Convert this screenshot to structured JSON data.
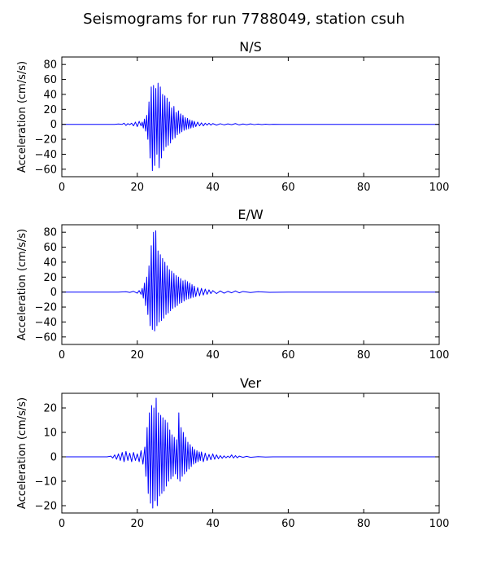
{
  "figure_title": "Seismograms for run 7788049, station csuh",
  "chart_data": [
    {
      "type": "line",
      "title": "N/S",
      "xlabel": "",
      "ylabel": "Acceleration (cm/s/s)",
      "xlim": [
        0,
        100
      ],
      "ylim": [
        -70,
        90
      ],
      "xticks": [
        0,
        20,
        40,
        60,
        80,
        100
      ],
      "yticks": [
        -60,
        -40,
        -20,
        0,
        20,
        40,
        60,
        80
      ],
      "grid": false,
      "color": "#0000ff",
      "series": [
        {
          "x": [
            0,
            12,
            14,
            15,
            16,
            16.5,
            17,
            17.5,
            18,
            18.5,
            19,
            19.5,
            20,
            20.5,
            21,
            21.3,
            21.6,
            21.9,
            22.2,
            22.5,
            22.8,
            23.1,
            23.4,
            23.7,
            24,
            24.3,
            24.6,
            24.9,
            25.2,
            25.5,
            25.8,
            26.1,
            26.4,
            26.7,
            27,
            27.3,
            27.6,
            27.9,
            28.2,
            28.5,
            28.8,
            29.1,
            29.4,
            29.7,
            30,
            30.3,
            30.6,
            30.9,
            31.2,
            31.5,
            31.8,
            32.1,
            32.4,
            32.7,
            33,
            33.3,
            33.6,
            33.9,
            34.2,
            34.5,
            34.8,
            35.1,
            35.5,
            36,
            36.5,
            37,
            37.5,
            38,
            38.5,
            39,
            39.5,
            40,
            41,
            42,
            43,
            44,
            45,
            46,
            47,
            48,
            49,
            50,
            51,
            52,
            53,
            54,
            55,
            56,
            58,
            60,
            100
          ],
          "y": [
            0,
            0,
            0,
            0.5,
            0,
            1.5,
            -1.5,
            1,
            -0.5,
            1.5,
            -2,
            3,
            -3,
            4,
            -2,
            3,
            -5,
            7,
            -9,
            12,
            -20,
            30,
            -45,
            50,
            -62,
            52,
            -55,
            48,
            -40,
            55,
            -58,
            50,
            -45,
            40,
            -35,
            38,
            -30,
            35,
            -28,
            30,
            -25,
            22,
            -20,
            24,
            -18,
            16,
            -14,
            18,
            -12,
            14,
            -10,
            12,
            -8,
            9,
            -7,
            8,
            -6,
            6,
            -5,
            5,
            -4,
            4,
            -3,
            3,
            -2,
            2,
            -2,
            1.5,
            -1,
            1.5,
            -1,
            1,
            -1,
            0.8,
            -0.7,
            0.6,
            -0.5,
            1,
            -0.8,
            0.5,
            -0.5,
            0.6,
            -0.4,
            0.3,
            -0.3,
            0.2,
            -0.2,
            0.1,
            0,
            0,
            0
          ]
        }
      ]
    },
    {
      "type": "line",
      "title": "E/W",
      "xlabel": "",
      "ylabel": "Acceleration (cm/s/s)",
      "xlim": [
        0,
        100
      ],
      "ylim": [
        -70,
        90
      ],
      "xticks": [
        0,
        20,
        40,
        60,
        80,
        100
      ],
      "yticks": [
        -60,
        -40,
        -20,
        0,
        20,
        40,
        60,
        80
      ],
      "grid": false,
      "color": "#0000ff",
      "series": [
        {
          "x": [
            0,
            15,
            17,
            18,
            19,
            20,
            20.5,
            21,
            21.3,
            21.6,
            21.9,
            22.2,
            22.5,
            22.8,
            23.1,
            23.4,
            23.7,
            24,
            24.3,
            24.6,
            24.9,
            25.2,
            25.5,
            25.8,
            26.1,
            26.4,
            26.7,
            27,
            27.3,
            27.6,
            27.9,
            28.2,
            28.5,
            28.8,
            29.1,
            29.4,
            29.7,
            30,
            30.3,
            30.6,
            30.9,
            31.2,
            31.5,
            31.8,
            32.1,
            32.4,
            32.7,
            33,
            33.3,
            33.6,
            33.9,
            34.2,
            34.5,
            34.8,
            35.1,
            35.5,
            36,
            36.5,
            37,
            37.5,
            38,
            38.5,
            39,
            39.5,
            40,
            41,
            42,
            43,
            44,
            45,
            46,
            47,
            48,
            50,
            52,
            55,
            60,
            100
          ],
          "y": [
            0,
            0,
            0.5,
            -0.5,
            1,
            -1.5,
            2,
            -3,
            5,
            -8,
            12,
            -18,
            20,
            -30,
            35,
            -45,
            62,
            -50,
            80,
            -52,
            82,
            -45,
            55,
            -40,
            50,
            -38,
            45,
            -35,
            40,
            -30,
            35,
            -28,
            30,
            -25,
            28,
            -22,
            25,
            -20,
            22,
            -18,
            20,
            -15,
            18,
            -14,
            15,
            -12,
            16,
            -10,
            14,
            -9,
            12,
            -8,
            10,
            -7,
            8,
            -6,
            6,
            -5,
            5,
            -4,
            4,
            -3,
            3,
            -2,
            2,
            -2,
            1.5,
            -1.5,
            1,
            -1,
            1.5,
            -1,
            0.8,
            -0.6,
            0.5,
            -0.3,
            0,
            0
          ]
        }
      ]
    },
    {
      "type": "line",
      "title": "Ver",
      "xlabel": "",
      "ylabel": "Acceleration (cm/s/s)",
      "xlim": [
        0,
        100
      ],
      "ylim": [
        -23,
        26
      ],
      "xticks": [
        0,
        20,
        40,
        60,
        80,
        100
      ],
      "yticks": [
        -20,
        -10,
        0,
        10,
        20
      ],
      "grid": false,
      "color": "#0000ff",
      "series": [
        {
          "x": [
            0,
            12,
            13,
            13.5,
            14,
            14.5,
            15,
            15.5,
            16,
            16.5,
            17,
            17.5,
            18,
            18.5,
            19,
            19.5,
            20,
            20.5,
            21,
            21.5,
            22,
            22.3,
            22.6,
            22.9,
            23.2,
            23.5,
            23.8,
            24.1,
            24.4,
            24.7,
            25,
            25.3,
            25.6,
            25.9,
            26.2,
            26.5,
            26.8,
            27.1,
            27.4,
            27.7,
            28,
            28.3,
            28.6,
            28.9,
            29.2,
            29.5,
            29.8,
            30.1,
            30.4,
            30.7,
            31,
            31.3,
            31.6,
            31.9,
            32.2,
            32.5,
            32.8,
            33.1,
            33.4,
            33.7,
            34,
            34.3,
            34.6,
            34.9,
            35.2,
            35.5,
            35.8,
            36.1,
            36.4,
            36.7,
            37,
            37.5,
            38,
            38.5,
            39,
            39.5,
            40,
            40.5,
            41,
            41.5,
            42,
            42.5,
            43,
            43.5,
            44,
            44.5,
            45,
            45.5,
            46,
            46.5,
            47,
            48,
            49,
            50,
            52,
            54,
            56,
            58,
            60,
            100
          ],
          "y": [
            0,
            0,
            0.3,
            -0.5,
            0.8,
            -1,
            1.2,
            -1.5,
            1.8,
            -2,
            2.2,
            -1.5,
            1.5,
            -2,
            1.8,
            -1.5,
            1.2,
            -2,
            2.5,
            -3,
            4,
            -8,
            12,
            -15,
            18,
            -19,
            21,
            -21,
            20,
            -18,
            24,
            -20,
            18,
            -16,
            17,
            -15,
            16,
            -14,
            15,
            -12,
            14,
            -10,
            11,
            -9,
            9,
            -8,
            8,
            -7,
            7,
            -9,
            18,
            -10,
            12,
            -8,
            10,
            -7,
            8,
            -6,
            6,
            -5,
            5,
            -4,
            4,
            -3,
            3,
            -2.5,
            2.5,
            -2,
            2,
            -1.5,
            2,
            -2,
            1.5,
            -1.5,
            1,
            -1.2,
            1.2,
            -1,
            0.8,
            -0.8,
            0.5,
            -0.6,
            0.4,
            -0.4,
            0.3,
            -0.3,
            0.8,
            -0.5,
            0.5,
            -0.4,
            0.3,
            -0.2,
            0.2,
            -0.2,
            0.1,
            -0.1,
            0,
            0,
            0,
            0
          ]
        }
      ]
    }
  ]
}
